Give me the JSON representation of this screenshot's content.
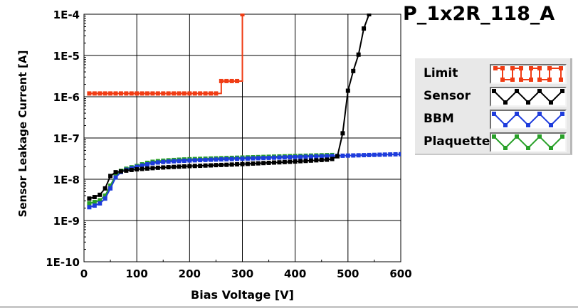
{
  "title": "P_1x2R_118_A",
  "chart_data": {
    "type": "line",
    "title": "P_1x2R_118_A",
    "xlabel": "Bias Voltage [V]",
    "ylabel": "Sensor Leakage Current [A]",
    "xlim": [
      0,
      600
    ],
    "ylim": [
      1e-10,
      0.0001
    ],
    "yscale": "log",
    "grid": true,
    "legend_position": "right",
    "x_ticks": [
      0,
      100,
      200,
      300,
      400,
      500,
      600
    ],
    "x_tick_labels": [
      "0",
      "100",
      "200",
      "300",
      "400",
      "500",
      "600"
    ],
    "y_ticks": [
      1e-10,
      1e-09,
      1e-08,
      1e-07,
      1e-06,
      1e-05,
      0.0001
    ],
    "y_tick_labels": [
      "1E-10",
      "1E-9",
      "1E-8",
      "1E-7",
      "1E-6",
      "1E-5",
      "1E-4"
    ],
    "series": [
      {
        "name": "Limit",
        "color": "#f03c14",
        "step": true,
        "x": [
          10,
          20,
          30,
          40,
          50,
          60,
          70,
          80,
          90,
          100,
          110,
          120,
          130,
          140,
          150,
          160,
          170,
          180,
          190,
          200,
          210,
          220,
          230,
          240,
          250,
          260,
          270,
          280,
          290,
          300
        ],
        "y": [
          1.2e-06,
          1.2e-06,
          1.2e-06,
          1.2e-06,
          1.2e-06,
          1.2e-06,
          1.2e-06,
          1.2e-06,
          1.2e-06,
          1.2e-06,
          1.2e-06,
          1.2e-06,
          1.2e-06,
          1.2e-06,
          1.2e-06,
          1.2e-06,
          1.2e-06,
          1.2e-06,
          1.2e-06,
          1.2e-06,
          1.2e-06,
          1.2e-06,
          1.2e-06,
          1.2e-06,
          1.2e-06,
          2.4e-06,
          2.4e-06,
          2.4e-06,
          2.4e-06,
          0.0001
        ]
      },
      {
        "name": "Sensor",
        "color": "#000000",
        "step": false,
        "x": [
          10,
          20,
          30,
          40,
          50,
          60,
          70,
          80,
          90,
          100,
          110,
          120,
          130,
          140,
          150,
          160,
          170,
          180,
          190,
          200,
          210,
          220,
          230,
          240,
          250,
          260,
          270,
          280,
          290,
          300,
          310,
          320,
          330,
          340,
          350,
          360,
          370,
          380,
          390,
          400,
          410,
          420,
          430,
          440,
          450,
          460,
          470,
          480,
          490,
          500,
          510,
          520,
          530,
          540
        ],
        "y": [
          3.4e-09,
          3.7e-09,
          4.2e-09,
          6e-09,
          1.2e-08,
          1.48e-08,
          1.55e-08,
          1.62e-08,
          1.68e-08,
          1.74e-08,
          1.78e-08,
          1.82e-08,
          1.86e-08,
          1.9e-08,
          1.93e-08,
          1.96e-08,
          1.99e-08,
          2.02e-08,
          2.05e-08,
          2.08e-08,
          2.1e-08,
          2.12e-08,
          2.15e-08,
          2.17e-08,
          2.2e-08,
          2.22e-08,
          2.24e-08,
          2.27e-08,
          2.3e-08,
          2.33e-08,
          2.36e-08,
          2.4e-08,
          2.43e-08,
          2.47e-08,
          2.5e-08,
          2.54e-08,
          2.57e-08,
          2.61e-08,
          2.65e-08,
          2.69e-08,
          2.74e-08,
          2.78e-08,
          2.83e-08,
          2.88e-08,
          2.93e-08,
          2.98e-08,
          3.1e-08,
          3.6e-08,
          1.3e-07,
          1.4e-06,
          4.2e-06,
          1.05e-05,
          4.5e-05,
          0.0001
        ]
      },
      {
        "name": "BBM",
        "color": "#1e3cdc",
        "step": false,
        "x": [
          10,
          20,
          30,
          40,
          50,
          60,
          70,
          80,
          90,
          100,
          110,
          120,
          130,
          140,
          150,
          160,
          170,
          180,
          190,
          200,
          210,
          220,
          230,
          240,
          250,
          260,
          270,
          280,
          290,
          300,
          310,
          320,
          330,
          340,
          350,
          360,
          370,
          380,
          390,
          400,
          410,
          420,
          430,
          440,
          450,
          460,
          470,
          480,
          490,
          500,
          510,
          520,
          530,
          540,
          550,
          560,
          570,
          580,
          590,
          600
        ],
        "y": [
          2.1e-09,
          2.3e-09,
          2.6e-09,
          3.4e-09,
          6e-09,
          1.1e-08,
          1.5e-08,
          1.7e-08,
          1.85e-08,
          2e-08,
          2.15e-08,
          2.3e-08,
          2.45e-08,
          2.55e-08,
          2.62e-08,
          2.68e-08,
          2.73e-08,
          2.77e-08,
          2.81e-08,
          2.85e-08,
          2.88e-08,
          2.91e-08,
          2.94e-08,
          2.97e-08,
          3e-08,
          3.03e-08,
          3.06e-08,
          3.09e-08,
          3.12e-08,
          3.15e-08,
          3.18e-08,
          3.21e-08,
          3.24e-08,
          3.27e-08,
          3.3e-08,
          3.33e-08,
          3.36e-08,
          3.39e-08,
          3.42e-08,
          3.45e-08,
          3.48e-08,
          3.51e-08,
          3.54e-08,
          3.57e-08,
          3.6e-08,
          3.63e-08,
          3.66e-08,
          3.69e-08,
          3.72e-08,
          3.75e-08,
          3.78e-08,
          3.81e-08,
          3.84e-08,
          3.87e-08,
          3.9e-08,
          3.93e-08,
          3.96e-08,
          3.99e-08,
          4.02e-08,
          4.05e-08
        ]
      },
      {
        "name": "Plaquette",
        "color": "#28a028",
        "step": false,
        "x": [
          10,
          20,
          30,
          40,
          50,
          60,
          70,
          80,
          90,
          100,
          110,
          120,
          130,
          140,
          150,
          160,
          170,
          180,
          190,
          200,
          210,
          220,
          230,
          240,
          250,
          260,
          270,
          280,
          290,
          300,
          310,
          320,
          330,
          340,
          350,
          360,
          370,
          380,
          390,
          400,
          410,
          420,
          430,
          440,
          450,
          460,
          470
        ],
        "y": [
          2.6e-09,
          2.8e-09,
          3.1e-09,
          4e-09,
          7e-09,
          1.25e-08,
          1.6e-08,
          1.8e-08,
          1.95e-08,
          2.1e-08,
          2.3e-08,
          2.5e-08,
          2.65e-08,
          2.75e-08,
          2.82e-08,
          2.88e-08,
          2.93e-08,
          2.98e-08,
          3.02e-08,
          3.06e-08,
          3.09e-08,
          3.12e-08,
          3.15e-08,
          3.18e-08,
          3.21e-08,
          3.24e-08,
          3.27e-08,
          3.3e-08,
          3.33e-08,
          3.36e-08,
          3.39e-08,
          3.42e-08,
          3.45e-08,
          3.48e-08,
          3.51e-08,
          3.54e-08,
          3.57e-08,
          3.6e-08,
          3.63e-08,
          3.66e-08,
          3.69e-08,
          3.72e-08,
          3.75e-08,
          3.78e-08,
          3.81e-08,
          3.84e-08,
          3.87e-08
        ]
      }
    ]
  },
  "legend": {
    "items": [
      {
        "label": "Limit",
        "color": "#f03c14",
        "pattern": "square-wave"
      },
      {
        "label": "Sensor",
        "color": "#000000",
        "pattern": "triangle-wave"
      },
      {
        "label": "BBM",
        "color": "#1e3cdc",
        "pattern": "triangle-wave"
      },
      {
        "label": "Plaquette",
        "color": "#28a028",
        "pattern": "triangle-wave"
      }
    ]
  }
}
